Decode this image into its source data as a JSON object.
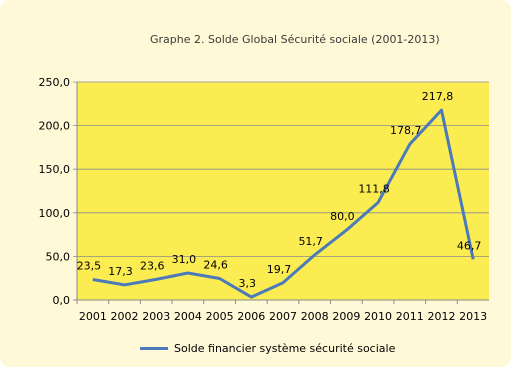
{
  "colors": {
    "frame_bg": "#fff9d8",
    "plot_bg": "#fbec52",
    "series": "#4a7ab9",
    "grid": "#8a8a8a"
  },
  "chart_data": {
    "type": "line",
    "title": "Graphe 2. Solde Global Sécurité sociale (2001-2013)",
    "xlabel": "",
    "ylabel": "",
    "categories": [
      "2001",
      "2002",
      "2003",
      "2004",
      "2005",
      "2006",
      "2007",
      "2008",
      "2009",
      "2010",
      "2011",
      "2012",
      "2013"
    ],
    "series": [
      {
        "name": "Solde financier système sécurité sociale",
        "values": [
          23.5,
          17.3,
          23.6,
          31.0,
          24.6,
          3.3,
          19.7,
          51.7,
          80.0,
          111.8,
          178.7,
          217.8,
          46.7
        ],
        "labels": [
          "23,5",
          "17,3",
          "23,6",
          "31,0",
          "24,6",
          "3,3",
          "19,7",
          "51,7",
          "80,0",
          "111,8",
          "178,7",
          "217,8",
          "46,7"
        ]
      }
    ],
    "ylim": [
      0,
      250
    ],
    "yticks": [
      0,
      50,
      100,
      150,
      200,
      250
    ],
    "ytick_labels": [
      "0,0",
      "50,0",
      "100,0",
      "150,0",
      "200,0",
      "250,0"
    ],
    "grid": true,
    "legend": "bottom"
  }
}
